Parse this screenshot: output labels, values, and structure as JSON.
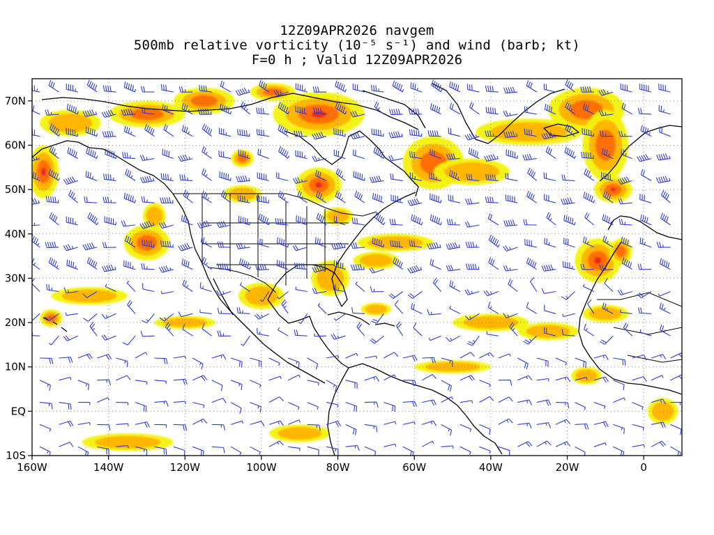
{
  "title": {
    "line1": "12Z09APR2026 navgem",
    "line2": "500mb relative vorticity (10⁻⁵ s⁻¹) and wind (barb; kt)",
    "line3": "F=0 h ; Valid 12Z09APR2026"
  },
  "map": {
    "lon_range": [
      -160,
      10
    ],
    "lat_range": [
      -10,
      75
    ],
    "lon_ticks": [
      "160W",
      "140W",
      "120W",
      "100W",
      "80W",
      "60W",
      "40W",
      "20W",
      "0"
    ],
    "lat_ticks": [
      "70N",
      "60N",
      "50N",
      "40N",
      "30N",
      "20N",
      "10N",
      "EQ",
      "10S"
    ],
    "gridlines": "dotted",
    "colors": {
      "shade_low": "#f2f20a",
      "shade_mid": "#ffb300",
      "shade_high": "#ff6a00",
      "shade_max": "#e8281e",
      "barbs": "#2b3bd9",
      "coast": "#000000"
    }
  }
}
